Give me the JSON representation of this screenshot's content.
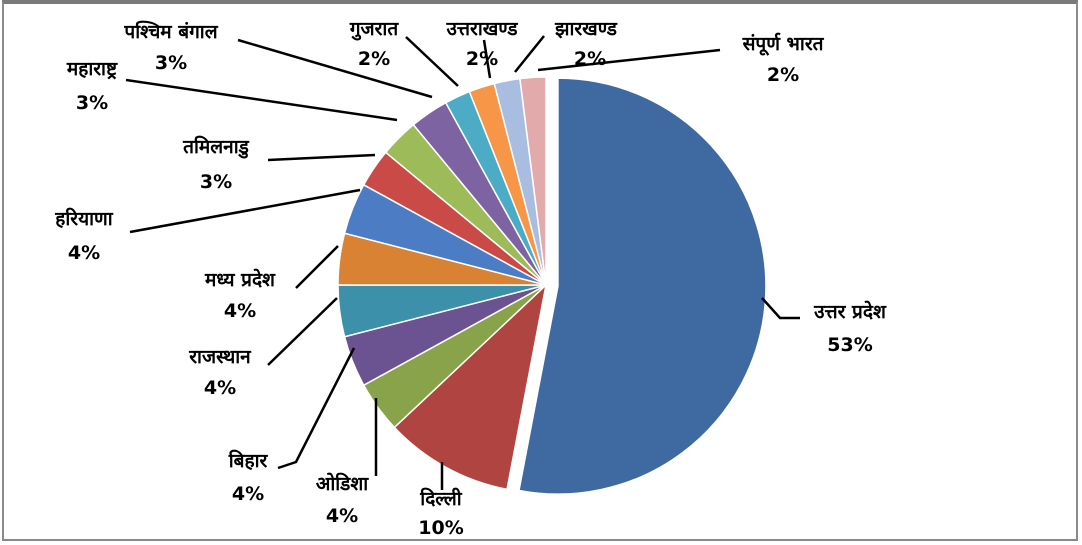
{
  "chart_data": {
    "type": "pie",
    "title": "",
    "categories": [
      "उत्तर प्रदेश",
      "दिल्ली",
      "ओडिशा",
      "बिहार",
      "राजस्थान",
      "मध्य प्रदेश",
      "हरियाणा",
      "तमिलनाडु",
      "महाराष्ट्र",
      "पश्चिम बंगाल",
      "गुजरात",
      "उत्तराखण्ड",
      "झारखण्ड",
      "संपूर्ण भारत"
    ],
    "values": [
      53,
      10,
      4,
      4,
      4,
      4,
      4,
      3,
      3,
      3,
      2,
      2,
      2,
      2
    ],
    "value_labels": [
      "53%",
      "10%",
      "4%",
      "4%",
      "4%",
      "4%",
      "4%",
      "3%",
      "3%",
      "3%",
      "2%",
      "2%",
      "2%",
      "2%"
    ],
    "colors": [
      "#3F6AA1",
      "#AF4441",
      "#88A34A",
      "#6B5290",
      "#3C90A9",
      "#DA8234",
      "#4C7CC4",
      "#CA4A47",
      "#9DBB59",
      "#7D63A1",
      "#4CACC6",
      "#F79646",
      "#A9BDE0",
      "#E2AAAA"
    ],
    "exploded_slice": "उत्तर प्रदेश",
    "legend": "none"
  }
}
